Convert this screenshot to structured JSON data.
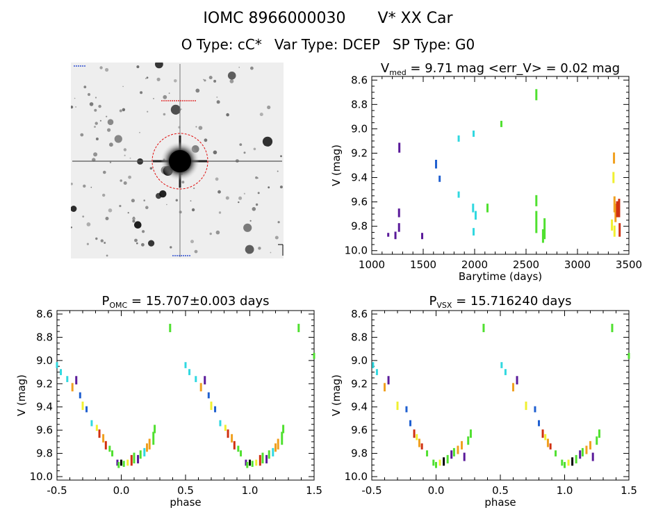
{
  "header": {
    "title_id": "IOMC 8966000030",
    "title_name": "V* XX Car",
    "otype_label": "O Type: cC*",
    "vartype_label": "Var Type: DCEP",
    "sptype_label": "SP Type: G0"
  },
  "colors": {
    "violet": "#5a1a9a",
    "blue": "#2060d0",
    "cyan": "#30d8e0",
    "green": "#50e030",
    "yellow": "#f0f030",
    "orange": "#f0a020",
    "red": "#d03010",
    "black": "#000000"
  },
  "chart_data": [
    {
      "id": "lightcurve",
      "type": "scatter",
      "title_main": "V",
      "title_sub": "med",
      "title_rest": "= 9.71 mag <err_V> = 0.02 mag",
      "xlabel": "Barytime (days)",
      "ylabel": "V (mag)",
      "xlim": [
        1000,
        3500
      ],
      "ylim": [
        10.03,
        8.57
      ],
      "xticks": [
        1000,
        1500,
        2000,
        2500,
        3000,
        3500
      ],
      "yticks": [
        8.6,
        8.8,
        9.0,
        9.2,
        9.4,
        9.6,
        9.8,
        10.0
      ],
      "points": [
        {
          "x": 1160,
          "ylo": 9.86,
          "yhi": 9.88,
          "c": "violet"
        },
        {
          "x": 1230,
          "ylo": 9.85,
          "yhi": 9.9,
          "c": "violet"
        },
        {
          "x": 1265,
          "ylo": 9.78,
          "yhi": 9.84,
          "c": "violet"
        },
        {
          "x": 1265,
          "ylo": 9.66,
          "yhi": 9.72,
          "c": "violet"
        },
        {
          "x": 1268,
          "ylo": 9.12,
          "yhi": 9.19,
          "c": "violet"
        },
        {
          "x": 1490,
          "ylo": 9.86,
          "yhi": 9.9,
          "c": "violet"
        },
        {
          "x": 1625,
          "ylo": 9.26,
          "yhi": 9.32,
          "c": "blue"
        },
        {
          "x": 1660,
          "ylo": 9.39,
          "yhi": 9.43,
          "c": "blue"
        },
        {
          "x": 1845,
          "ylo": 9.06,
          "yhi": 9.1,
          "c": "cyan"
        },
        {
          "x": 1845,
          "ylo": 9.52,
          "yhi": 9.56,
          "c": "cyan"
        },
        {
          "x": 1990,
          "ylo": 9.02,
          "yhi": 9.06,
          "c": "cyan"
        },
        {
          "x": 1985,
          "ylo": 9.62,
          "yhi": 9.68,
          "c": "cyan"
        },
        {
          "x": 1990,
          "ylo": 9.82,
          "yhi": 9.87,
          "c": "cyan"
        },
        {
          "x": 2010,
          "ylo": 9.68,
          "yhi": 9.74,
          "c": "cyan"
        },
        {
          "x": 2125,
          "ylo": 9.62,
          "yhi": 9.68,
          "c": "green"
        },
        {
          "x": 2260,
          "ylo": 8.94,
          "yhi": 8.98,
          "c": "green"
        },
        {
          "x": 2600,
          "ylo": 8.68,
          "yhi": 8.76,
          "c": "green"
        },
        {
          "x": 2600,
          "ylo": 9.55,
          "yhi": 9.63,
          "c": "green"
        },
        {
          "x": 2600,
          "ylo": 9.68,
          "yhi": 9.85,
          "c": "green"
        },
        {
          "x": 2665,
          "ylo": 9.83,
          "yhi": 9.93,
          "c": "green"
        },
        {
          "x": 2680,
          "ylo": 9.74,
          "yhi": 9.9,
          "c": "green"
        },
        {
          "x": 3335,
          "ylo": 9.75,
          "yhi": 9.83,
          "c": "yellow"
        },
        {
          "x": 3350,
          "ylo": 9.36,
          "yhi": 9.44,
          "c": "yellow"
        },
        {
          "x": 3355,
          "ylo": 9.2,
          "yhi": 9.28,
          "c": "orange"
        },
        {
          "x": 3360,
          "ylo": 9.56,
          "yhi": 9.68,
          "c": "orange"
        },
        {
          "x": 3360,
          "ylo": 9.8,
          "yhi": 9.88,
          "c": "yellow"
        },
        {
          "x": 3370,
          "ylo": 9.62,
          "yhi": 9.76,
          "c": "orange"
        },
        {
          "x": 3385,
          "ylo": 9.6,
          "yhi": 9.72,
          "c": "red"
        },
        {
          "x": 3405,
          "ylo": 9.58,
          "yhi": 9.72,
          "c": "red"
        },
        {
          "x": 3410,
          "ylo": 9.78,
          "yhi": 9.88,
          "c": "red"
        }
      ]
    },
    {
      "id": "phase_omc",
      "type": "scatter",
      "title_main": "P",
      "title_sub": "OMC",
      "title_rest": "= 15.707±0.003 days",
      "xlabel": "phase",
      "ylabel": "V (mag)",
      "xlim": [
        -0.5,
        1.5
      ],
      "ylim": [
        10.03,
        8.57
      ],
      "xticks": [
        -0.5,
        0.0,
        0.5,
        1.0,
        1.5
      ],
      "yticks": [
        8.6,
        8.8,
        9.0,
        9.2,
        9.4,
        9.6,
        9.8,
        10.0
      ],
      "points": [
        {
          "x": -0.5,
          "ylo": 9.02,
          "yhi": 9.06,
          "c": "cyan"
        },
        {
          "x": -0.47,
          "ylo": 9.08,
          "yhi": 9.12,
          "c": "cyan"
        },
        {
          "x": -0.42,
          "ylo": 9.14,
          "yhi": 9.18,
          "c": "cyan"
        },
        {
          "x": -0.38,
          "ylo": 9.2,
          "yhi": 9.26,
          "c": "orange"
        },
        {
          "x": -0.35,
          "ylo": 9.14,
          "yhi": 9.2,
          "c": "violet"
        },
        {
          "x": -0.32,
          "ylo": 9.28,
          "yhi": 9.32,
          "c": "blue"
        },
        {
          "x": -0.3,
          "ylo": 9.36,
          "yhi": 9.42,
          "c": "yellow"
        },
        {
          "x": -0.27,
          "ylo": 9.4,
          "yhi": 9.44,
          "c": "blue"
        },
        {
          "x": -0.23,
          "ylo": 9.52,
          "yhi": 9.56,
          "c": "cyan"
        },
        {
          "x": -0.19,
          "ylo": 9.56,
          "yhi": 9.6,
          "c": "yellow"
        },
        {
          "x": -0.17,
          "ylo": 9.6,
          "yhi": 9.66,
          "c": "red"
        },
        {
          "x": -0.14,
          "ylo": 9.64,
          "yhi": 9.7,
          "c": "orange"
        },
        {
          "x": -0.12,
          "ylo": 9.7,
          "yhi": 9.76,
          "c": "red"
        },
        {
          "x": -0.09,
          "ylo": 9.74,
          "yhi": 9.78,
          "c": "green"
        },
        {
          "x": -0.07,
          "ylo": 9.78,
          "yhi": 9.82,
          "c": "green"
        },
        {
          "x": -0.03,
          "ylo": 9.86,
          "yhi": 9.9,
          "c": "violet"
        },
        {
          "x": -0.02,
          "ylo": 9.88,
          "yhi": 9.92,
          "c": "green"
        },
        {
          "x": 0.0,
          "ylo": 9.86,
          "yhi": 9.9,
          "c": "black"
        },
        {
          "x": 0.02,
          "ylo": 9.87,
          "yhi": 9.91,
          "c": "green"
        },
        {
          "x": 0.05,
          "ylo": 9.86,
          "yhi": 9.9,
          "c": "yellow"
        },
        {
          "x": 0.08,
          "ylo": 9.82,
          "yhi": 9.9,
          "c": "red"
        },
        {
          "x": 0.1,
          "ylo": 9.8,
          "yhi": 9.88,
          "c": "green"
        },
        {
          "x": 0.13,
          "ylo": 9.82,
          "yhi": 9.88,
          "c": "violet"
        },
        {
          "x": 0.15,
          "ylo": 9.78,
          "yhi": 9.84,
          "c": "green"
        },
        {
          "x": 0.18,
          "ylo": 9.76,
          "yhi": 9.82,
          "c": "cyan"
        },
        {
          "x": 0.2,
          "ylo": 9.72,
          "yhi": 9.78,
          "c": "orange"
        },
        {
          "x": 0.22,
          "ylo": 9.68,
          "yhi": 9.76,
          "c": "orange"
        },
        {
          "x": 0.25,
          "ylo": 9.62,
          "yhi": 9.72,
          "c": "green"
        },
        {
          "x": 0.26,
          "ylo": 9.56,
          "yhi": 9.62,
          "c": "green"
        },
        {
          "x": 0.38,
          "ylo": 8.69,
          "yhi": 8.75,
          "c": "green"
        },
        {
          "x": 0.5,
          "ylo": 9.02,
          "yhi": 9.06,
          "c": "cyan"
        },
        {
          "x": 0.53,
          "ylo": 9.08,
          "yhi": 9.12,
          "c": "cyan"
        },
        {
          "x": 0.58,
          "ylo": 9.14,
          "yhi": 9.18,
          "c": "cyan"
        },
        {
          "x": 0.62,
          "ylo": 9.2,
          "yhi": 9.26,
          "c": "orange"
        },
        {
          "x": 0.65,
          "ylo": 9.14,
          "yhi": 9.2,
          "c": "violet"
        },
        {
          "x": 0.68,
          "ylo": 9.28,
          "yhi": 9.32,
          "c": "blue"
        },
        {
          "x": 0.7,
          "ylo": 9.36,
          "yhi": 9.42,
          "c": "yellow"
        },
        {
          "x": 0.73,
          "ylo": 9.4,
          "yhi": 9.44,
          "c": "blue"
        },
        {
          "x": 0.77,
          "ylo": 9.52,
          "yhi": 9.56,
          "c": "cyan"
        },
        {
          "x": 0.81,
          "ylo": 9.56,
          "yhi": 9.6,
          "c": "yellow"
        },
        {
          "x": 0.83,
          "ylo": 9.6,
          "yhi": 9.66,
          "c": "red"
        },
        {
          "x": 0.86,
          "ylo": 9.64,
          "yhi": 9.7,
          "c": "orange"
        },
        {
          "x": 0.88,
          "ylo": 9.7,
          "yhi": 9.76,
          "c": "red"
        },
        {
          "x": 0.91,
          "ylo": 9.74,
          "yhi": 9.78,
          "c": "green"
        },
        {
          "x": 0.93,
          "ylo": 9.78,
          "yhi": 9.82,
          "c": "green"
        },
        {
          "x": 0.97,
          "ylo": 9.86,
          "yhi": 9.9,
          "c": "violet"
        },
        {
          "x": 0.98,
          "ylo": 9.88,
          "yhi": 9.92,
          "c": "green"
        },
        {
          "x": 1.0,
          "ylo": 9.86,
          "yhi": 9.9,
          "c": "black"
        },
        {
          "x": 1.02,
          "ylo": 9.87,
          "yhi": 9.91,
          "c": "green"
        },
        {
          "x": 1.05,
          "ylo": 9.86,
          "yhi": 9.9,
          "c": "yellow"
        },
        {
          "x": 1.08,
          "ylo": 9.82,
          "yhi": 9.9,
          "c": "red"
        },
        {
          "x": 1.1,
          "ylo": 9.8,
          "yhi": 9.88,
          "c": "green"
        },
        {
          "x": 1.13,
          "ylo": 9.82,
          "yhi": 9.88,
          "c": "violet"
        },
        {
          "x": 1.15,
          "ylo": 9.78,
          "yhi": 9.84,
          "c": "green"
        },
        {
          "x": 1.18,
          "ylo": 9.76,
          "yhi": 9.82,
          "c": "cyan"
        },
        {
          "x": 1.2,
          "ylo": 9.72,
          "yhi": 9.78,
          "c": "orange"
        },
        {
          "x": 1.22,
          "ylo": 9.68,
          "yhi": 9.76,
          "c": "orange"
        },
        {
          "x": 1.25,
          "ylo": 9.62,
          "yhi": 9.72,
          "c": "green"
        },
        {
          "x": 1.26,
          "ylo": 9.56,
          "yhi": 9.62,
          "c": "green"
        },
        {
          "x": 1.38,
          "ylo": 8.69,
          "yhi": 8.75,
          "c": "green"
        },
        {
          "x": 1.5,
          "ylo": 8.94,
          "yhi": 8.98,
          "c": "green"
        }
      ]
    },
    {
      "id": "phase_vsx",
      "type": "scatter",
      "title_main": "P",
      "title_sub": "VSX",
      "title_rest": "= 15.716240 days",
      "xlabel": "phase",
      "ylabel": "V (mag)",
      "xlim": [
        -0.5,
        1.5
      ],
      "ylim": [
        10.03,
        8.57
      ],
      "xticks": [
        -0.5,
        0.0,
        0.5,
        1.0,
        1.5
      ],
      "yticks": [
        8.6,
        8.8,
        9.0,
        9.2,
        9.4,
        9.6,
        9.8,
        10.0
      ],
      "points": [
        {
          "x": -0.49,
          "ylo": 9.02,
          "yhi": 9.06,
          "c": "cyan"
        },
        {
          "x": -0.46,
          "ylo": 9.08,
          "yhi": 9.12,
          "c": "cyan"
        },
        {
          "x": -0.4,
          "ylo": 9.2,
          "yhi": 9.26,
          "c": "orange"
        },
        {
          "x": -0.37,
          "ylo": 9.14,
          "yhi": 9.2,
          "c": "violet"
        },
        {
          "x": -0.3,
          "ylo": 9.36,
          "yhi": 9.42,
          "c": "yellow"
        },
        {
          "x": -0.23,
          "ylo": 9.4,
          "yhi": 9.44,
          "c": "blue"
        },
        {
          "x": -0.2,
          "ylo": 9.52,
          "yhi": 9.56,
          "c": "blue"
        },
        {
          "x": -0.17,
          "ylo": 9.6,
          "yhi": 9.66,
          "c": "red"
        },
        {
          "x": -0.15,
          "ylo": 9.64,
          "yhi": 9.68,
          "c": "yellow"
        },
        {
          "x": -0.13,
          "ylo": 9.68,
          "yhi": 9.74,
          "c": "orange"
        },
        {
          "x": -0.11,
          "ylo": 9.72,
          "yhi": 9.76,
          "c": "red"
        },
        {
          "x": -0.07,
          "ylo": 9.78,
          "yhi": 9.82,
          "c": "green"
        },
        {
          "x": -0.02,
          "ylo": 9.86,
          "yhi": 9.9,
          "c": "green"
        },
        {
          "x": 0.0,
          "ylo": 9.88,
          "yhi": 9.92,
          "c": "green"
        },
        {
          "x": 0.03,
          "ylo": 9.86,
          "yhi": 9.9,
          "c": "yellow"
        },
        {
          "x": 0.06,
          "ylo": 9.84,
          "yhi": 9.9,
          "c": "black"
        },
        {
          "x": 0.09,
          "ylo": 9.82,
          "yhi": 9.88,
          "c": "green"
        },
        {
          "x": 0.12,
          "ylo": 9.78,
          "yhi": 9.84,
          "c": "violet"
        },
        {
          "x": 0.14,
          "ylo": 9.76,
          "yhi": 9.82,
          "c": "green"
        },
        {
          "x": 0.17,
          "ylo": 9.74,
          "yhi": 9.8,
          "c": "orange"
        },
        {
          "x": 0.2,
          "ylo": 9.7,
          "yhi": 9.76,
          "c": "orange"
        },
        {
          "x": 0.22,
          "ylo": 9.8,
          "yhi": 9.86,
          "c": "violet"
        },
        {
          "x": 0.25,
          "ylo": 9.66,
          "yhi": 9.72,
          "c": "green"
        },
        {
          "x": 0.27,
          "ylo": 9.6,
          "yhi": 9.66,
          "c": "green"
        },
        {
          "x": 0.37,
          "ylo": 8.69,
          "yhi": 8.75,
          "c": "green"
        },
        {
          "x": 0.51,
          "ylo": 9.02,
          "yhi": 9.06,
          "c": "cyan"
        },
        {
          "x": 0.54,
          "ylo": 9.08,
          "yhi": 9.12,
          "c": "cyan"
        },
        {
          "x": 0.6,
          "ylo": 9.2,
          "yhi": 9.26,
          "c": "orange"
        },
        {
          "x": 0.63,
          "ylo": 9.14,
          "yhi": 9.2,
          "c": "violet"
        },
        {
          "x": 0.7,
          "ylo": 9.36,
          "yhi": 9.42,
          "c": "yellow"
        },
        {
          "x": 0.77,
          "ylo": 9.4,
          "yhi": 9.44,
          "c": "blue"
        },
        {
          "x": 0.8,
          "ylo": 9.52,
          "yhi": 9.56,
          "c": "blue"
        },
        {
          "x": 0.83,
          "ylo": 9.6,
          "yhi": 9.66,
          "c": "red"
        },
        {
          "x": 0.85,
          "ylo": 9.64,
          "yhi": 9.68,
          "c": "yellow"
        },
        {
          "x": 0.87,
          "ylo": 9.68,
          "yhi": 9.74,
          "c": "orange"
        },
        {
          "x": 0.89,
          "ylo": 9.72,
          "yhi": 9.76,
          "c": "red"
        },
        {
          "x": 0.93,
          "ylo": 9.78,
          "yhi": 9.82,
          "c": "green"
        },
        {
          "x": 0.98,
          "ylo": 9.86,
          "yhi": 9.9,
          "c": "green"
        },
        {
          "x": 1.0,
          "ylo": 9.88,
          "yhi": 9.92,
          "c": "green"
        },
        {
          "x": 1.03,
          "ylo": 9.86,
          "yhi": 9.9,
          "c": "yellow"
        },
        {
          "x": 1.06,
          "ylo": 9.84,
          "yhi": 9.9,
          "c": "black"
        },
        {
          "x": 1.09,
          "ylo": 9.82,
          "yhi": 9.88,
          "c": "green"
        },
        {
          "x": 1.12,
          "ylo": 9.78,
          "yhi": 9.84,
          "c": "violet"
        },
        {
          "x": 1.14,
          "ylo": 9.76,
          "yhi": 9.82,
          "c": "green"
        },
        {
          "x": 1.17,
          "ylo": 9.74,
          "yhi": 9.8,
          "c": "orange"
        },
        {
          "x": 1.2,
          "ylo": 9.7,
          "yhi": 9.76,
          "c": "orange"
        },
        {
          "x": 1.22,
          "ylo": 9.8,
          "yhi": 9.86,
          "c": "violet"
        },
        {
          "x": 1.25,
          "ylo": 9.66,
          "yhi": 9.72,
          "c": "green"
        },
        {
          "x": 1.27,
          "ylo": 9.6,
          "yhi": 9.66,
          "c": "green"
        },
        {
          "x": 1.37,
          "ylo": 8.69,
          "yhi": 8.75,
          "c": "green"
        },
        {
          "x": 1.5,
          "ylo": 8.94,
          "yhi": 8.98,
          "c": "green"
        }
      ]
    }
  ]
}
